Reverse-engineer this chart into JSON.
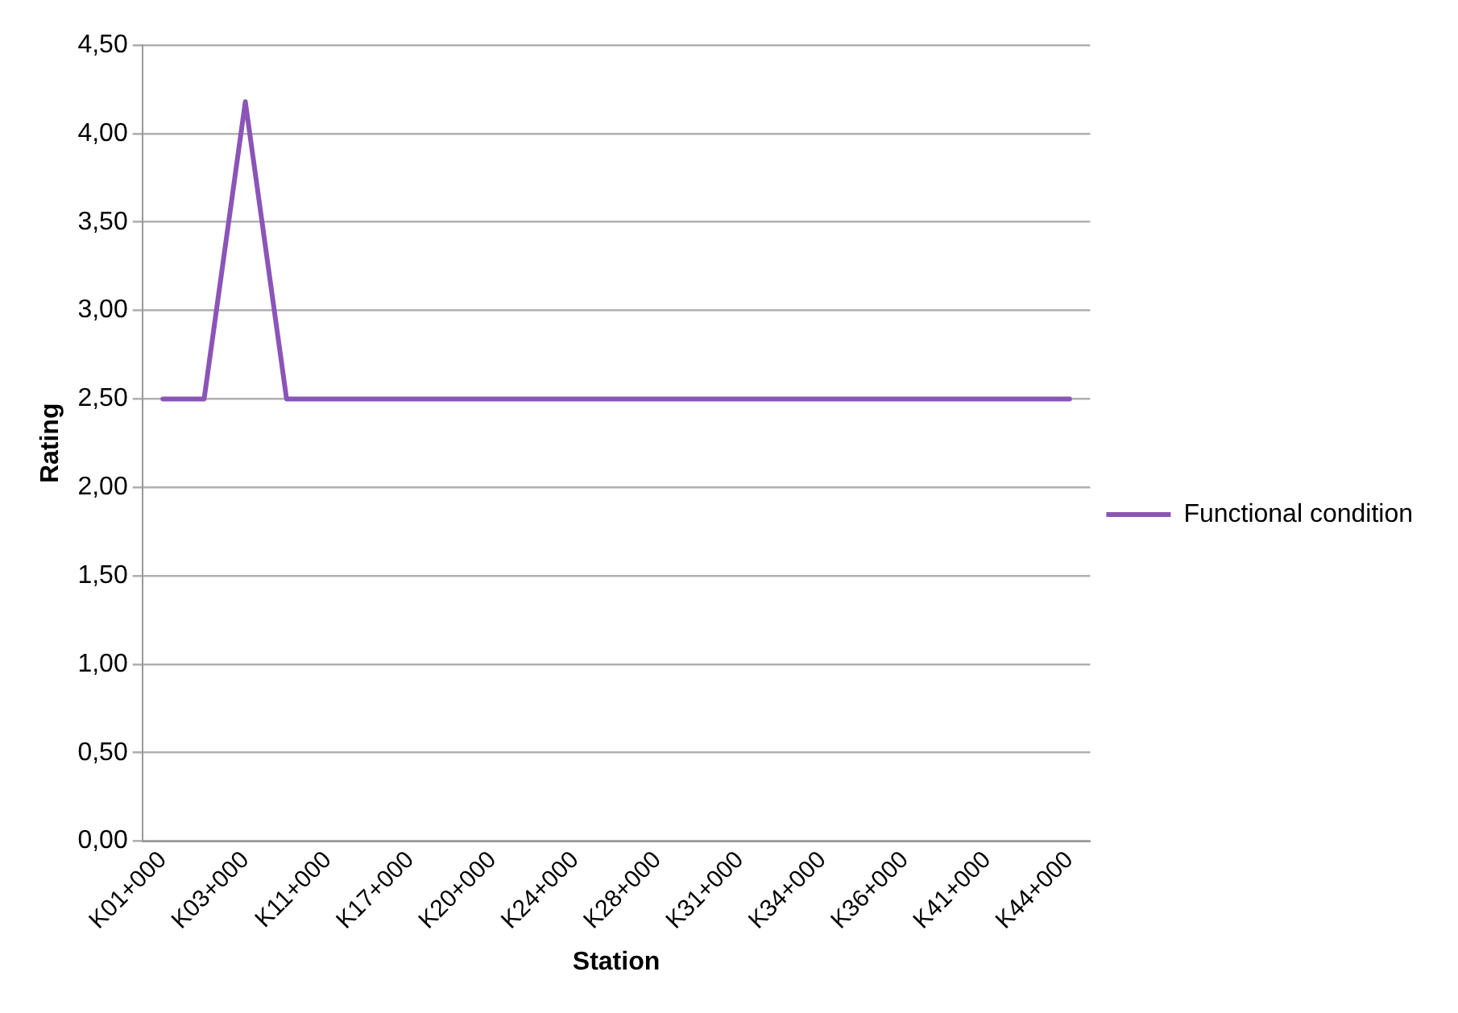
{
  "chart_data": {
    "type": "line",
    "xlabel": "Station",
    "ylabel": "Rating",
    "categories": [
      "K01+000",
      null,
      "K03+000",
      null,
      "K11+000",
      null,
      "K17+000",
      null,
      "K20+000",
      null,
      "K24+000",
      null,
      "K28+000",
      null,
      "K31+000",
      null,
      "K34+000",
      null,
      "K36+000",
      null,
      "K41+000",
      null,
      "K44+000"
    ],
    "series": [
      {
        "name": "Functional condition",
        "color": "#8b55b8",
        "values": [
          2.5,
          2.5,
          4.18,
          2.5,
          2.5,
          2.5,
          2.5,
          2.5,
          2.5,
          2.5,
          2.5,
          2.5,
          2.5,
          2.5,
          2.5,
          2.5,
          2.5,
          2.5,
          2.5,
          2.5,
          2.5,
          2.5,
          2.5
        ]
      }
    ],
    "ylim": [
      0,
      4.5
    ],
    "yticks": [
      {
        "value": 0,
        "label": "0,00"
      },
      {
        "value": 0.5,
        "label": "0,50"
      },
      {
        "value": 1,
        "label": "1,00"
      },
      {
        "value": 1.5,
        "label": "1,50"
      },
      {
        "value": 2,
        "label": "2,00"
      },
      {
        "value": 2.5,
        "label": "2,50"
      },
      {
        "value": 3,
        "label": "3,00"
      },
      {
        "value": 3.5,
        "label": "3,50"
      },
      {
        "value": 4,
        "label": "4,00"
      },
      {
        "value": 4.5,
        "label": "4,50"
      }
    ],
    "grid": "y",
    "legend": "right",
    "marker": "none",
    "line_style": "solid"
  }
}
